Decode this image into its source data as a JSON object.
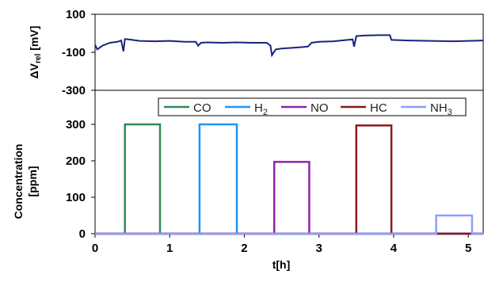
{
  "chart_data": [
    {
      "type": "line",
      "title": "",
      "xlabel": "",
      "ylabel_main": "ΔV",
      "ylabel_sub": "rel",
      "ylabel_unit": "[mV]",
      "xlim": [
        0,
        5.2
      ],
      "ylim": [
        -300,
        100
      ],
      "y_ticks": [
        100,
        -100,
        -300
      ],
      "x_ticks": [],
      "grid": false,
      "series": [
        {
          "color": "#1a237e",
          "x": [
            0,
            0.03,
            0.1,
            0.2,
            0.3,
            0.35,
            0.38,
            0.4,
            0.45,
            0.6,
            0.8,
            1.0,
            1.2,
            1.35,
            1.38,
            1.42,
            1.5,
            1.7,
            1.9,
            2.1,
            2.3,
            2.35,
            2.37,
            2.42,
            2.5,
            2.7,
            2.85,
            2.9,
            3.0,
            3.2,
            3.3,
            3.45,
            3.47,
            3.5,
            3.6,
            3.8,
            3.95,
            3.97,
            4.2,
            4.5,
            4.8,
            5.0,
            5.2
          ],
          "values": [
            -60,
            -85,
            -65,
            -50,
            -45,
            -38,
            -95,
            -30,
            -32,
            -40,
            -42,
            -40,
            -45,
            -45,
            -65,
            -50,
            -48,
            -50,
            -48,
            -50,
            -50,
            -65,
            -115,
            -85,
            -80,
            -75,
            -70,
            -50,
            -45,
            -42,
            -38,
            -32,
            -70,
            -15,
            -12,
            -10,
            -10,
            -35,
            -38,
            -40,
            -42,
            -40,
            -38
          ]
        }
      ]
    },
    {
      "type": "line",
      "title": "",
      "xlabel": "t[h]",
      "ylabel": "Concentration",
      "ylabel_unit": "[ppm]",
      "xlim": [
        0,
        5.2
      ],
      "ylim": [
        0,
        300
      ],
      "x_ticks": [
        0,
        1,
        2,
        3,
        4,
        5
      ],
      "y_ticks": [
        0,
        100,
        200,
        300
      ],
      "grid": false,
      "legend": "top",
      "series": [
        {
          "name": "CO",
          "color": "#2e8b57",
          "x": [
            0,
            0.4,
            0.4,
            0.87,
            0.87,
            5.2
          ],
          "values": [
            0,
            0,
            300,
            300,
            0,
            0
          ]
        },
        {
          "name": "H",
          "name_sub": "2",
          "color": "#2196f3",
          "x": [
            0,
            1.4,
            1.4,
            1.9,
            1.9,
            5.2
          ],
          "values": [
            0,
            0,
            300,
            300,
            0,
            0
          ]
        },
        {
          "name": "NO",
          "color": "#8e24aa",
          "x": [
            0,
            2.4,
            2.4,
            2.87,
            2.87,
            5.2
          ],
          "values": [
            0,
            0,
            197,
            197,
            0,
            0
          ]
        },
        {
          "name": "HC",
          "color": "#8b1a1a",
          "x": [
            0,
            3.5,
            3.5,
            3.97,
            3.97,
            5.2
          ],
          "values": [
            0,
            0,
            297,
            297,
            0,
            0
          ]
        },
        {
          "name": "NH",
          "name_sub": "3",
          "color": "#8c9eff",
          "x": [
            0,
            4.57,
            4.57,
            5.05,
            5.05,
            5.2
          ],
          "values": [
            0,
            0,
            50,
            50,
            0,
            0
          ]
        }
      ]
    }
  ]
}
